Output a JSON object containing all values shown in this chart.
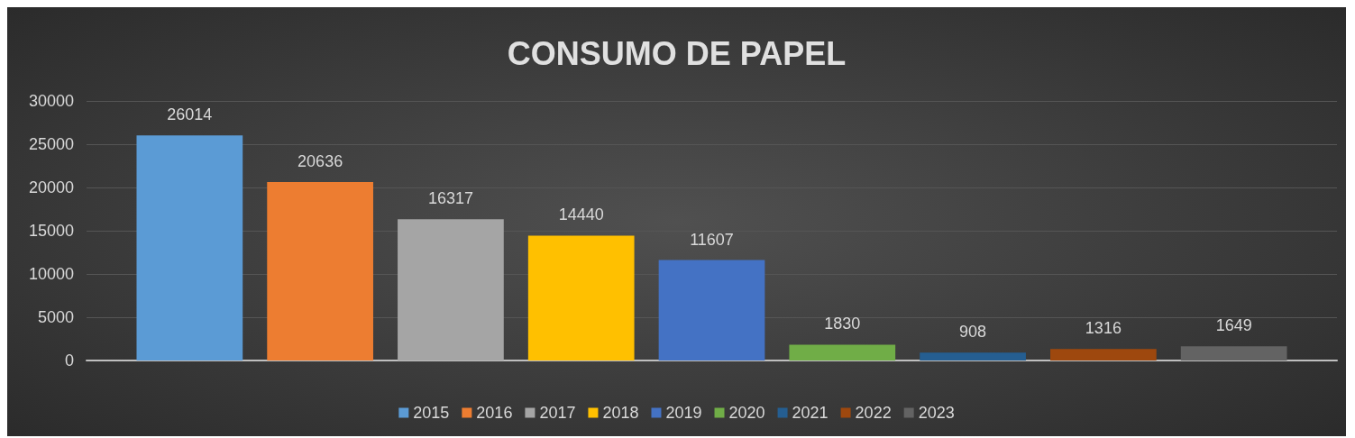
{
  "chart_data": {
    "type": "bar",
    "title": "CONSUMO DE PAPEL",
    "categories": [
      null
    ],
    "series": [
      {
        "name": "2015",
        "color": "#5b9bd5",
        "values": [
          26014
        ]
      },
      {
        "name": "2016",
        "color": "#ed7d31",
        "values": [
          20636
        ]
      },
      {
        "name": "2017",
        "color": "#a5a5a5",
        "values": [
          16317
        ]
      },
      {
        "name": "2018",
        "color": "#ffc000",
        "values": [
          14440
        ]
      },
      {
        "name": "2019",
        "color": "#4472c4",
        "values": [
          11607
        ]
      },
      {
        "name": "2020",
        "color": "#70ad47",
        "values": [
          1830
        ]
      },
      {
        "name": "2021",
        "color": "#255e91",
        "values": [
          908
        ]
      },
      {
        "name": "2022",
        "color": "#9e480e",
        "values": [
          1316
        ]
      },
      {
        "name": "2023",
        "color": "#636363",
        "values": [
          1649
        ]
      }
    ],
    "ylim": [
      0,
      30000
    ],
    "yticks": [
      0,
      5000,
      10000,
      15000,
      20000,
      25000,
      30000
    ],
    "grid": "y",
    "legend": "bottom",
    "data_labels": true
  }
}
